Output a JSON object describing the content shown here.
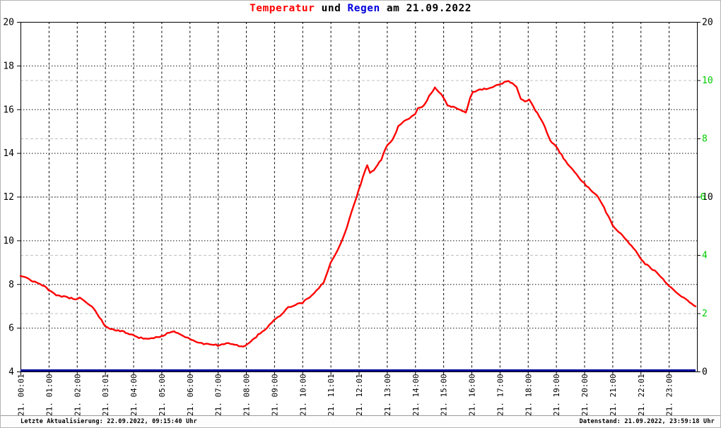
{
  "title": {
    "temperatur": "Temperatur",
    "und": " und ",
    "regen": "Regen",
    "date": " am 21.09.2022"
  },
  "status_bar": {
    "left": "Letzte Aktualisierung: 22.09.2022, 09:15:40 Uhr",
    "right": "Datenstand: 21.09.2022, 23:59:18 Uhr"
  },
  "colors": {
    "temperature_line": "#ff0000",
    "rain_line": "#000099",
    "rain_axis_labels": "#00cc00",
    "title_temperatur": "#ff0000",
    "title_regen": "#0000dd",
    "grid_major": "#000000",
    "grid_rain": "#c0c0c0",
    "axis": "#000000"
  },
  "chart_data": {
    "type": "line",
    "title": "Temperatur und Regen am 21.09.2022",
    "grid": "on",
    "x_axis": {
      "range_hours": [
        0,
        24
      ],
      "tick_labels": [
        "21. 00:01",
        "21. 01:00",
        "21. 02:00",
        "21. 03:01",
        "21. 04:00",
        "21. 05:00",
        "21. 06:00",
        "21. 07:00",
        "21. 08:00",
        "21. 09:00",
        "21. 10:00",
        "21. 11:01",
        "21. 12:01",
        "21. 13:00",
        "21. 14:00",
        "21. 15:00",
        "21. 16:00",
        "21. 17:00",
        "21. 18:00",
        "21. 19:00",
        "21. 20:00",
        "21. 21:00",
        "21. 22:01",
        "21. 23:00"
      ]
    },
    "y_left": {
      "range": [
        4,
        20
      ],
      "ticks": [
        20,
        18,
        16,
        14,
        12,
        10,
        8,
        6,
        4
      ]
    },
    "y_right": {
      "range": [
        0,
        12
      ],
      "green_ticks": [
        10,
        8,
        6,
        4,
        2
      ],
      "black_ticks": [
        20,
        10,
        0
      ]
    },
    "series": [
      {
        "name": "Temperatur",
        "axis": "left",
        "color": "#ff0000",
        "points": [
          [
            0,
            8.4
          ],
          [
            0.15,
            8.32
          ],
          [
            0.3,
            8.22
          ],
          [
            0.5,
            8.1
          ],
          [
            0.7,
            8.0
          ],
          [
            0.85,
            7.9
          ],
          [
            1.0,
            7.72
          ],
          [
            1.2,
            7.55
          ],
          [
            1.4,
            7.45
          ],
          [
            1.6,
            7.42
          ],
          [
            1.8,
            7.35
          ],
          [
            1.95,
            7.3
          ],
          [
            2.1,
            7.4
          ],
          [
            2.25,
            7.25
          ],
          [
            2.4,
            7.1
          ],
          [
            2.6,
            6.9
          ],
          [
            2.8,
            6.5
          ],
          [
            3.0,
            6.05
          ],
          [
            3.2,
            5.95
          ],
          [
            3.4,
            5.9
          ],
          [
            3.6,
            5.85
          ],
          [
            3.8,
            5.75
          ],
          [
            4.0,
            5.65
          ],
          [
            4.2,
            5.55
          ],
          [
            4.5,
            5.5
          ],
          [
            4.8,
            5.55
          ],
          [
            5.0,
            5.6
          ],
          [
            5.2,
            5.75
          ],
          [
            5.45,
            5.85
          ],
          [
            5.65,
            5.72
          ],
          [
            5.85,
            5.58
          ],
          [
            6.0,
            5.5
          ],
          [
            6.2,
            5.38
          ],
          [
            6.5,
            5.27
          ],
          [
            6.8,
            5.25
          ],
          [
            7.0,
            5.2
          ],
          [
            7.3,
            5.3
          ],
          [
            7.6,
            5.22
          ],
          [
            7.9,
            5.15
          ],
          [
            8.1,
            5.3
          ],
          [
            8.3,
            5.52
          ],
          [
            8.5,
            5.75
          ],
          [
            8.75,
            6.0
          ],
          [
            9.0,
            6.35
          ],
          [
            9.2,
            6.55
          ],
          [
            9.5,
            6.95
          ],
          [
            9.75,
            7.05
          ],
          [
            10.0,
            7.15
          ],
          [
            10.25,
            7.4
          ],
          [
            10.5,
            7.7
          ],
          [
            10.75,
            8.05
          ],
          [
            11.0,
            8.95
          ],
          [
            11.25,
            9.55
          ],
          [
            11.5,
            10.3
          ],
          [
            11.75,
            11.3
          ],
          [
            12.0,
            12.3
          ],
          [
            12.15,
            12.9
          ],
          [
            12.3,
            13.45
          ],
          [
            12.4,
            13.1
          ],
          [
            12.6,
            13.3
          ],
          [
            12.8,
            13.7
          ],
          [
            13.0,
            14.35
          ],
          [
            13.2,
            14.6
          ],
          [
            13.4,
            15.2
          ],
          [
            13.6,
            15.45
          ],
          [
            13.8,
            15.6
          ],
          [
            14.0,
            15.8
          ],
          [
            14.1,
            16.05
          ],
          [
            14.3,
            16.15
          ],
          [
            14.5,
            16.6
          ],
          [
            14.7,
            17.0
          ],
          [
            14.85,
            16.8
          ],
          [
            15.0,
            16.55
          ],
          [
            15.15,
            16.2
          ],
          [
            15.35,
            16.1
          ],
          [
            15.6,
            16.0
          ],
          [
            15.8,
            15.85
          ],
          [
            15.95,
            16.5
          ],
          [
            16.05,
            16.8
          ],
          [
            16.3,
            16.9
          ],
          [
            16.6,
            16.95
          ],
          [
            16.9,
            17.1
          ],
          [
            17.1,
            17.2
          ],
          [
            17.25,
            17.3
          ],
          [
            17.45,
            17.2
          ],
          [
            17.6,
            17.0
          ],
          [
            17.75,
            16.5
          ],
          [
            17.9,
            16.35
          ],
          [
            18.05,
            16.45
          ],
          [
            18.2,
            16.1
          ],
          [
            18.4,
            15.7
          ],
          [
            18.6,
            15.2
          ],
          [
            18.8,
            14.55
          ],
          [
            19.0,
            14.3
          ],
          [
            19.2,
            13.9
          ],
          [
            19.4,
            13.5
          ],
          [
            19.6,
            13.2
          ],
          [
            19.8,
            12.9
          ],
          [
            20.0,
            12.6
          ],
          [
            20.3,
            12.2
          ],
          [
            20.5,
            12.0
          ],
          [
            20.7,
            11.5
          ],
          [
            21.0,
            10.7
          ],
          [
            21.3,
            10.3
          ],
          [
            21.6,
            9.85
          ],
          [
            21.9,
            9.4
          ],
          [
            22.1,
            9.0
          ],
          [
            22.3,
            8.8
          ],
          [
            22.5,
            8.6
          ],
          [
            22.8,
            8.2
          ],
          [
            23.0,
            7.95
          ],
          [
            23.3,
            7.6
          ],
          [
            23.6,
            7.3
          ],
          [
            23.95,
            7.0
          ]
        ]
      },
      {
        "name": "Regen",
        "axis": "right",
        "color": "#000099",
        "points": [
          [
            0,
            0
          ],
          [
            23.95,
            0
          ]
        ]
      }
    ]
  }
}
